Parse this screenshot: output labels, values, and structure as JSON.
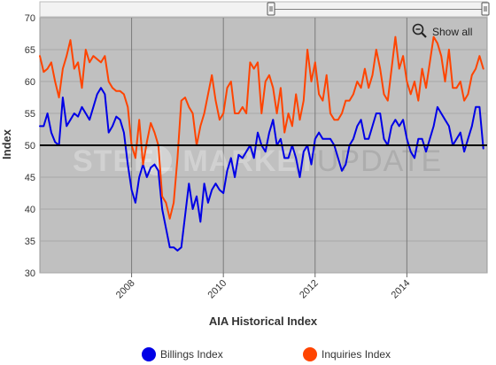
{
  "chart_data": {
    "type": "line",
    "title": "",
    "xlabel": "AIA Historical Index",
    "ylabel": "Index",
    "ylim": [
      30,
      70
    ],
    "yticks": [
      30,
      35,
      40,
      45,
      50,
      55,
      60,
      65,
      70
    ],
    "xlim": [
      2006.0,
      2015.75
    ],
    "xticks": [
      "2008",
      "2010",
      "2012",
      "2014"
    ],
    "reference_line": 50,
    "grid": true,
    "legend_position": "bottom",
    "watermark": {
      "part1": "STEEL MARKET",
      "part2": "UPDATE"
    },
    "zoom_control": {
      "label": "Show all",
      "icon": "zoom-out-icon"
    },
    "series": [
      {
        "name": "Billings Index",
        "color": "#0000e6",
        "x": [
          2006.0,
          2006.083,
          2006.167,
          2006.25,
          2006.333,
          2006.417,
          2006.5,
          2006.583,
          2006.667,
          2006.75,
          2006.833,
          2006.917,
          2007.0,
          2007.083,
          2007.167,
          2007.25,
          2007.333,
          2007.417,
          2007.5,
          2007.583,
          2007.667,
          2007.75,
          2007.833,
          2007.917,
          2008.0,
          2008.083,
          2008.167,
          2008.25,
          2008.333,
          2008.417,
          2008.5,
          2008.583,
          2008.667,
          2008.75,
          2008.833,
          2008.917,
          2009.0,
          2009.083,
          2009.167,
          2009.25,
          2009.333,
          2009.417,
          2009.5,
          2009.583,
          2009.667,
          2009.75,
          2009.833,
          2009.917,
          2010.0,
          2010.083,
          2010.167,
          2010.25,
          2010.333,
          2010.417,
          2010.5,
          2010.583,
          2010.667,
          2010.75,
          2010.833,
          2010.917,
          2011.0,
          2011.083,
          2011.167,
          2011.25,
          2011.333,
          2011.417,
          2011.5,
          2011.583,
          2011.667,
          2011.75,
          2011.833,
          2011.917,
          2012.0,
          2012.083,
          2012.167,
          2012.25,
          2012.333,
          2012.417,
          2012.5,
          2012.583,
          2012.667,
          2012.75,
          2012.833,
          2012.917,
          2013.0,
          2013.083,
          2013.167,
          2013.25,
          2013.333,
          2013.417,
          2013.5,
          2013.583,
          2013.667,
          2013.75,
          2013.833,
          2013.917,
          2014.0,
          2014.083,
          2014.167,
          2014.25,
          2014.333,
          2014.417,
          2014.5,
          2014.583,
          2014.667,
          2014.75,
          2014.833,
          2014.917,
          2015.0,
          2015.083,
          2015.167,
          2015.25,
          2015.333,
          2015.417,
          2015.5,
          2015.583,
          2015.667
        ],
        "values": [
          53.0,
          53.0,
          55.0,
          52.0,
          50.5,
          50.0,
          57.5,
          53.0,
          54.0,
          55.0,
          54.5,
          56.0,
          55.0,
          54.0,
          56.0,
          58.0,
          59.0,
          58.0,
          52.0,
          53.0,
          54.5,
          54.0,
          52.0,
          47.0,
          43.0,
          41.0,
          45.0,
          47.0,
          45.0,
          46.5,
          47.0,
          46.0,
          40.0,
          37.0,
          34.0,
          34.0,
          33.5,
          34.0,
          39.0,
          44.0,
          40.0,
          42.0,
          38.0,
          44.0,
          41.0,
          43.0,
          44.0,
          43.0,
          42.5,
          46.0,
          48.0,
          45.0,
          48.5,
          48.0,
          49.0,
          50.0,
          48.0,
          52.0,
          50.0,
          49.0,
          52.0,
          54.0,
          50.0,
          51.0,
          48.0,
          48.0,
          50.0,
          48.0,
          45.0,
          49.0,
          50.0,
          47.0,
          51.0,
          52.0,
          51.0,
          51.0,
          51.0,
          50.0,
          48.0,
          46.0,
          47.0,
          50.0,
          51.0,
          53.0,
          54.0,
          51.0,
          51.0,
          53.0,
          55.0,
          55.0,
          51.0,
          50.0,
          53.0,
          54.0,
          53.0,
          54.0,
          51.0,
          49.0,
          48.0,
          51.0,
          51.0,
          49.0,
          51.0,
          53.0,
          56.0,
          55.0,
          54.0,
          53.0,
          50.0,
          51.0,
          52.0,
          49.0,
          51.0,
          53.0,
          56.0,
          56.0,
          49.5
        ]
      },
      {
        "name": "Inquiries Index",
        "color": "#ff4400",
        "x": [
          2006.0,
          2006.083,
          2006.167,
          2006.25,
          2006.333,
          2006.417,
          2006.5,
          2006.583,
          2006.667,
          2006.75,
          2006.833,
          2006.917,
          2007.0,
          2007.083,
          2007.167,
          2007.25,
          2007.333,
          2007.417,
          2007.5,
          2007.583,
          2007.667,
          2007.75,
          2007.833,
          2007.917,
          2008.0,
          2008.083,
          2008.167,
          2008.25,
          2008.333,
          2008.417,
          2008.5,
          2008.583,
          2008.667,
          2008.75,
          2008.833,
          2008.917,
          2009.0,
          2009.083,
          2009.167,
          2009.25,
          2009.333,
          2009.417,
          2009.5,
          2009.583,
          2009.667,
          2009.75,
          2009.833,
          2009.917,
          2010.0,
          2010.083,
          2010.167,
          2010.25,
          2010.333,
          2010.417,
          2010.5,
          2010.583,
          2010.667,
          2010.75,
          2010.833,
          2010.917,
          2011.0,
          2011.083,
          2011.167,
          2011.25,
          2011.333,
          2011.417,
          2011.5,
          2011.583,
          2011.667,
          2011.75,
          2011.833,
          2011.917,
          2012.0,
          2012.083,
          2012.167,
          2012.25,
          2012.333,
          2012.417,
          2012.5,
          2012.583,
          2012.667,
          2012.75,
          2012.833,
          2012.917,
          2013.0,
          2013.083,
          2013.167,
          2013.25,
          2013.333,
          2013.417,
          2013.5,
          2013.583,
          2013.667,
          2013.75,
          2013.833,
          2013.917,
          2014.0,
          2014.083,
          2014.167,
          2014.25,
          2014.333,
          2014.417,
          2014.5,
          2014.583,
          2014.667,
          2014.75,
          2014.833,
          2014.917,
          2015.0,
          2015.083,
          2015.167,
          2015.25,
          2015.333,
          2015.417,
          2015.5,
          2015.583,
          2015.667
        ],
        "values": [
          64.0,
          61.5,
          62.0,
          63.0,
          60.0,
          57.5,
          62.0,
          64.0,
          66.5,
          62.0,
          63.0,
          59.0,
          65.0,
          63.0,
          64.0,
          63.5,
          63.0,
          64.0,
          60.0,
          59.0,
          58.5,
          58.5,
          58.0,
          56.0,
          50.0,
          48.0,
          54.0,
          47.0,
          50.5,
          53.5,
          52.0,
          50.0,
          42.0,
          41.0,
          38.5,
          41.0,
          48.0,
          57.0,
          57.5,
          56.0,
          55.0,
          50.0,
          53.0,
          55.0,
          58.0,
          61.0,
          57.0,
          54.0,
          55.0,
          59.0,
          60.0,
          55.0,
          55.0,
          56.0,
          55.0,
          63.0,
          62.0,
          63.0,
          55.0,
          60.0,
          61.0,
          59.0,
          55.0,
          59.0,
          52.0,
          55.0,
          53.0,
          58.0,
          54.0,
          57.0,
          65.0,
          60.0,
          63.0,
          58.0,
          57.0,
          61.0,
          55.0,
          54.0,
          54.0,
          55.0,
          57.0,
          57.0,
          58.0,
          60.0,
          59.0,
          62.0,
          59.0,
          61.0,
          65.0,
          62.0,
          58.0,
          57.0,
          62.0,
          67.0,
          62.0,
          64.0,
          60.0,
          58.0,
          60.0,
          57.0,
          62.0,
          59.0,
          63.0,
          67.0,
          66.0,
          64.0,
          60.0,
          65.0,
          59.0,
          59.0,
          60.0,
          57.0,
          58.0,
          61.0,
          62.0,
          64.0,
          62.0
        ]
      }
    ]
  }
}
